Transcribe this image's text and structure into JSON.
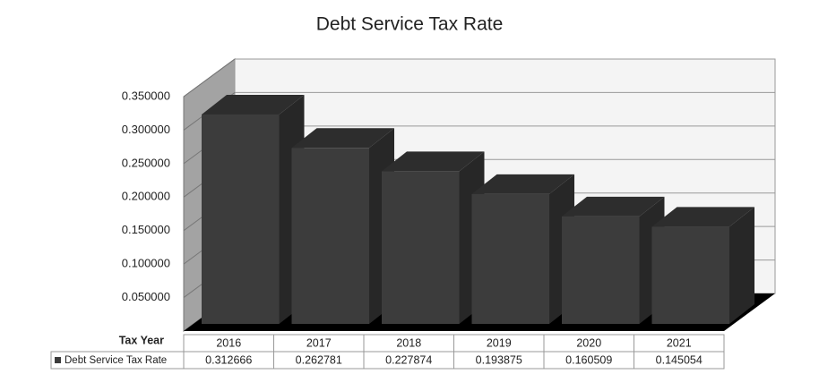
{
  "chart_data": {
    "type": "bar3d",
    "title": "Debt Service Tax Rate",
    "x_label": "Tax Year",
    "categories": [
      "2016",
      "2017",
      "2018",
      "2019",
      "2020",
      "2021"
    ],
    "series": [
      {
        "name": "Debt Service Tax Rate",
        "color": "#3c3c3c",
        "values": [
          0.312666,
          0.262781,
          0.227874,
          0.193875,
          0.160509,
          0.145054
        ]
      }
    ],
    "ylim": [
      0,
      0.35
    ],
    "yticks": [
      {
        "value": 0.05,
        "label": "0.050000"
      },
      {
        "value": 0.1,
        "label": "0.100000"
      },
      {
        "value": 0.15,
        "label": "0.150000"
      },
      {
        "value": 0.2,
        "label": "0.200000"
      },
      {
        "value": 0.25,
        "label": "0.250000"
      },
      {
        "value": 0.3,
        "label": "0.300000"
      },
      {
        "value": 0.35,
        "label": "0.350000"
      }
    ],
    "grid": true,
    "data_table": true
  }
}
